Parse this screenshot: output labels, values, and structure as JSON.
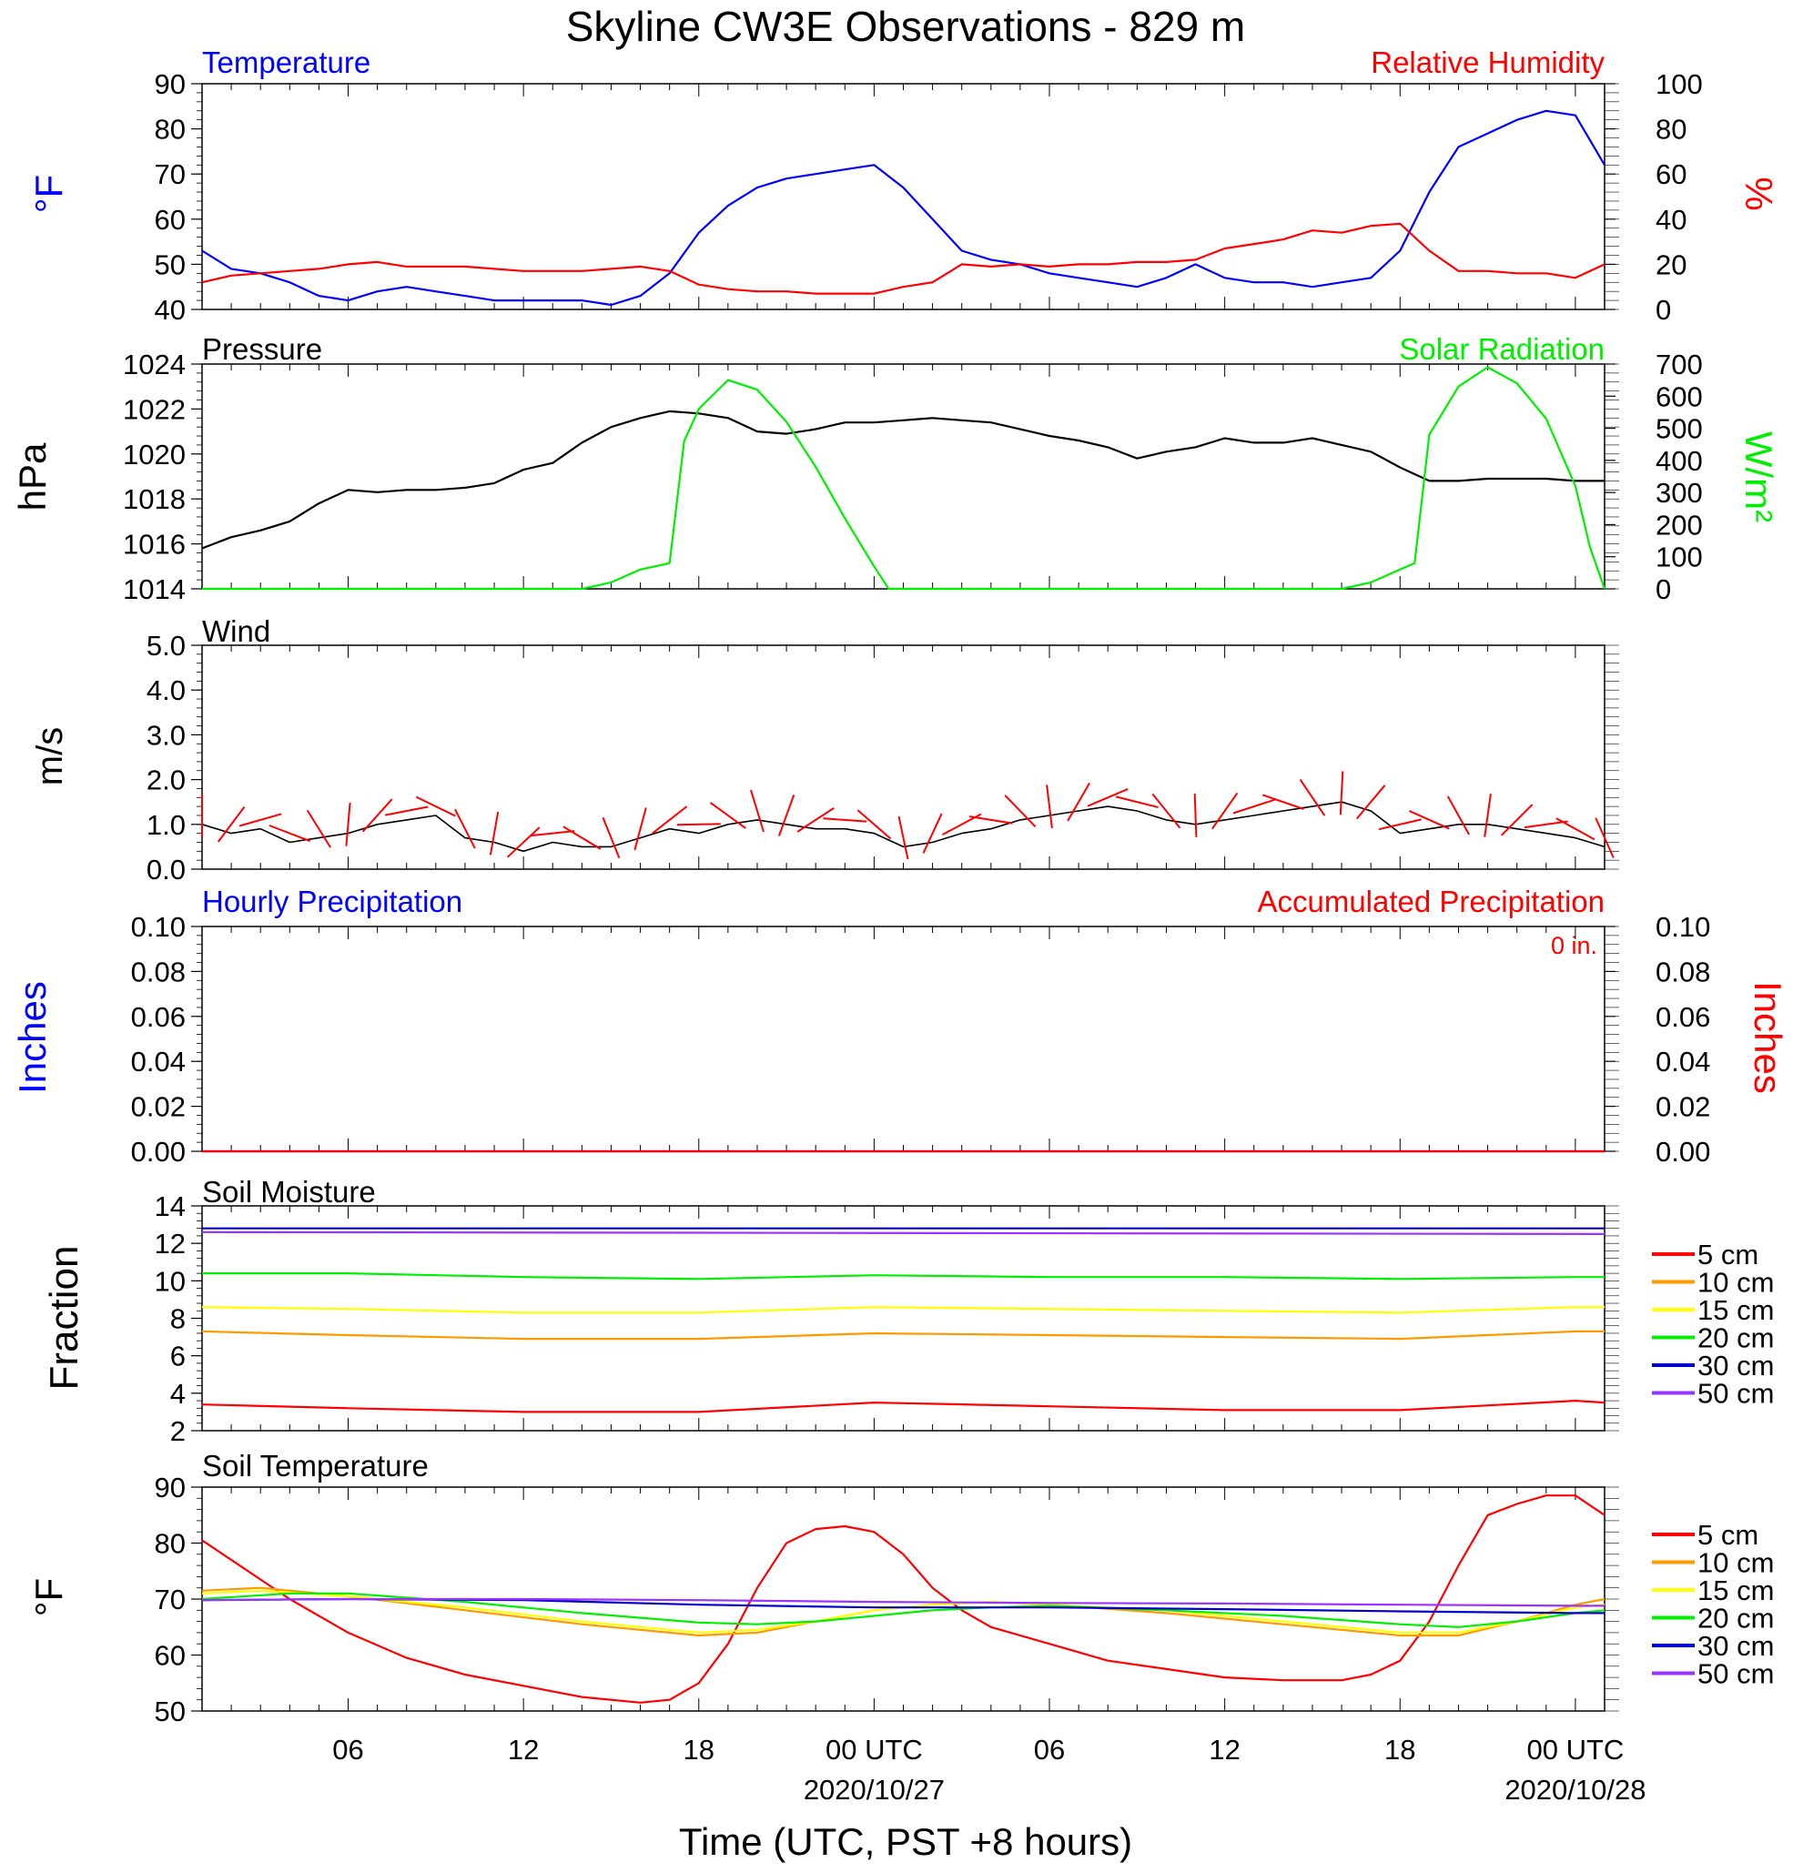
{
  "title": "Skyline CW3E Observations - 829 m",
  "xlabel": "Time (UTC, PST +8 hours)",
  "x_ticks": [
    {
      "hour": 6,
      "label": "06",
      "date": ""
    },
    {
      "hour": 12,
      "label": "12",
      "date": ""
    },
    {
      "hour": 18,
      "label": "18",
      "date": ""
    },
    {
      "hour": 24,
      "label": "00 UTC",
      "date": "2020/10/27"
    },
    {
      "hour": 30,
      "label": "06",
      "date": ""
    },
    {
      "hour": 36,
      "label": "12",
      "date": ""
    },
    {
      "hour": 42,
      "label": "18",
      "date": ""
    },
    {
      "hour": 48,
      "label": "00 UTC",
      "date": "2020/10/28"
    }
  ],
  "colors": {
    "temperature": "#0000ff",
    "humidity": "#ff0000",
    "pressure": "#000000",
    "solar": "#00ee00",
    "wind": "#000000",
    "barbs": "#ff0000",
    "soil_5cm": "#ff0000",
    "soil_10cm": "#ff9900",
    "soil_15cm": "#ffff00",
    "soil_20cm": "#00ee00",
    "soil_30cm": "#0000cc",
    "soil_50cm": "#9933ff"
  },
  "panels": {
    "temp_rh": {
      "left_title": "Temperature",
      "right_title": "Relative Humidity",
      "left_unit": "°F",
      "right_unit": "%",
      "left_ticks": [
        "40",
        "50",
        "60",
        "70",
        "80",
        "90"
      ],
      "right_ticks": [
        "0",
        "20",
        "40",
        "60",
        "80",
        "100"
      ]
    },
    "pressure_solar": {
      "left_title": "Pressure",
      "right_title": "Solar Radiation",
      "left_unit": "hPa",
      "right_unit": "W/m²",
      "left_ticks": [
        "1014",
        "1016",
        "1018",
        "1020",
        "1022",
        "1024"
      ],
      "right_ticks": [
        "0",
        "100",
        "200",
        "300",
        "400",
        "500",
        "600",
        "700"
      ]
    },
    "wind": {
      "left_title": "Wind",
      "left_unit": "m/s",
      "left_ticks": [
        "0.0",
        "1.0",
        "2.0",
        "3.0",
        "4.0",
        "5.0"
      ]
    },
    "precip": {
      "left_title": "Hourly Precipitation",
      "right_title": "Accumulated Precipitation",
      "accum_label": "0 in.",
      "left_unit": "Inches",
      "right_unit": "Inches",
      "left_ticks": [
        "0.00",
        "0.02",
        "0.04",
        "0.06",
        "0.08",
        "0.10"
      ],
      "right_ticks": [
        "0.00",
        "0.02",
        "0.04",
        "0.06",
        "0.08",
        "0.10"
      ]
    },
    "soil_moisture": {
      "left_title": "Soil Moisture",
      "left_unit": "Fraction",
      "left_ticks": [
        "2",
        "4",
        "6",
        "8",
        "10",
        "12",
        "14"
      ],
      "legend": [
        "5 cm",
        "10 cm",
        "15 cm",
        "20 cm",
        "30 cm",
        "50 cm"
      ]
    },
    "soil_temp": {
      "left_title": "Soil Temperature",
      "left_unit": "°F",
      "left_ticks": [
        "50",
        "60",
        "70",
        "80",
        "90"
      ],
      "legend": [
        "5 cm",
        "10 cm",
        "15 cm",
        "20 cm",
        "30 cm",
        "50 cm"
      ]
    }
  },
  "chart_data": [
    {
      "type": "line",
      "title": "Temperature / Relative Humidity",
      "x_unit": "hours from 2020/10/26 01 UTC",
      "xlim": [
        1,
        49
      ],
      "ylim": [
        40,
        90
      ],
      "y2lim": [
        0,
        100
      ],
      "series": [
        {
          "name": "Temperature",
          "axis": "left",
          "x": [
            1,
            2,
            3,
            4,
            5,
            6,
            7,
            8,
            9,
            10,
            11,
            12,
            13,
            14,
            15,
            16,
            17,
            18,
            19,
            20,
            21,
            22,
            23,
            24,
            25,
            26,
            27,
            28,
            29,
            30,
            31,
            32,
            33,
            34,
            35,
            36,
            37,
            38,
            39,
            40,
            41,
            42,
            43,
            44,
            45,
            46,
            47,
            48,
            49
          ],
          "values": [
            53,
            49,
            48,
            46,
            43,
            42,
            44,
            45,
            44,
            43,
            42,
            42,
            42,
            42,
            41,
            43,
            48,
            57,
            63,
            67,
            69,
            70,
            71,
            72,
            67,
            60,
            53,
            51,
            50,
            48,
            47,
            46,
            45,
            47,
            50,
            47,
            46,
            46,
            45,
            46,
            47,
            53,
            66,
            76,
            79,
            82,
            84,
            83,
            72
          ]
        },
        {
          "name": "Relative Humidity",
          "axis": "right",
          "x": [
            1,
            2,
            3,
            4,
            5,
            6,
            7,
            8,
            9,
            10,
            11,
            12,
            13,
            14,
            15,
            16,
            17,
            18,
            19,
            20,
            21,
            22,
            23,
            24,
            25,
            26,
            27,
            28,
            29,
            30,
            31,
            32,
            33,
            34,
            35,
            36,
            37,
            38,
            39,
            40,
            41,
            42,
            43,
            44,
            45,
            46,
            47,
            48,
            49
          ],
          "values": [
            12,
            15,
            16,
            17,
            18,
            20,
            21,
            19,
            19,
            19,
            18,
            17,
            17,
            17,
            18,
            19,
            17,
            11,
            9,
            8,
            8,
            7,
            7,
            7,
            10,
            12,
            20,
            19,
            20,
            19,
            20,
            20,
            21,
            21,
            22,
            27,
            29,
            31,
            35,
            34,
            37,
            38,
            26,
            17,
            17,
            16,
            16,
            14,
            20
          ]
        }
      ]
    },
    {
      "type": "line",
      "title": "Pressure / Solar Radiation",
      "x_unit": "hours from 2020/10/26 01 UTC",
      "xlim": [
        1,
        49
      ],
      "ylim": [
        1014,
        1024
      ],
      "y2lim": [
        0,
        700
      ],
      "series": [
        {
          "name": "Pressure",
          "axis": "left",
          "x": [
            1,
            2,
            3,
            4,
            5,
            6,
            7,
            8,
            9,
            10,
            11,
            12,
            13,
            14,
            15,
            16,
            17,
            18,
            19,
            20,
            21,
            22,
            23,
            24,
            25,
            26,
            27,
            28,
            29,
            30,
            31,
            32,
            33,
            34,
            35,
            36,
            37,
            38,
            39,
            40,
            41,
            42,
            43,
            44,
            45,
            46,
            47,
            48,
            49
          ],
          "values": [
            1015.8,
            1016.3,
            1016.6,
            1017.0,
            1017.8,
            1018.4,
            1018.3,
            1018.4,
            1018.4,
            1018.5,
            1018.7,
            1019.3,
            1019.6,
            1020.5,
            1021.2,
            1021.6,
            1021.9,
            1021.8,
            1021.6,
            1021.0,
            1020.9,
            1021.1,
            1021.4,
            1021.4,
            1021.5,
            1021.6,
            1021.5,
            1021.4,
            1021.1,
            1020.8,
            1020.6,
            1020.3,
            1019.8,
            1020.1,
            1020.3,
            1020.7,
            1020.5,
            1020.5,
            1020.7,
            1020.4,
            1020.1,
            1019.4,
            1018.8,
            1018.8,
            1018.9,
            1018.9,
            1018.9,
            1018.8,
            1018.8
          ]
        },
        {
          "name": "Solar Radiation",
          "axis": "right",
          "x": [
            1,
            14,
            15,
            16,
            17,
            17.5,
            18,
            19,
            20,
            21,
            22,
            23,
            24,
            24.5,
            25,
            40,
            41,
            42,
            42.5,
            43,
            44,
            45,
            46,
            47,
            48,
            48.5,
            49
          ],
          "values": [
            0,
            0,
            20,
            60,
            80,
            460,
            560,
            650,
            620,
            520,
            380,
            220,
            70,
            0,
            0,
            0,
            20,
            60,
            80,
            480,
            630,
            690,
            640,
            530,
            320,
            130,
            0
          ]
        }
      ]
    },
    {
      "type": "line",
      "title": "Wind",
      "x_unit": "hours from 2020/10/26 01 UTC",
      "xlim": [
        1,
        49
      ],
      "ylim": [
        0,
        5
      ],
      "series": [
        {
          "name": "Wind speed",
          "x": [
            1,
            2,
            3,
            4,
            5,
            6,
            7,
            8,
            9,
            10,
            11,
            12,
            13,
            14,
            15,
            16,
            17,
            18,
            19,
            20,
            21,
            22,
            23,
            24,
            25,
            26,
            27,
            28,
            29,
            30,
            31,
            32,
            33,
            34,
            35,
            36,
            37,
            38,
            39,
            40,
            41,
            42,
            43,
            44,
            45,
            46,
            47,
            48,
            49
          ],
          "values": [
            1.0,
            0.8,
            0.9,
            0.6,
            0.7,
            0.8,
            1.0,
            1.1,
            1.2,
            0.7,
            0.6,
            0.4,
            0.6,
            0.5,
            0.5,
            0.7,
            0.9,
            0.8,
            1.0,
            1.1,
            1.0,
            0.9,
            0.9,
            0.8,
            0.5,
            0.6,
            0.8,
            0.9,
            1.1,
            1.2,
            1.3,
            1.4,
            1.3,
            1.1,
            1.0,
            1.1,
            1.2,
            1.3,
            1.4,
            1.5,
            1.3,
            0.8,
            0.9,
            1.0,
            1.0,
            0.9,
            0.8,
            0.7,
            0.5
          ]
        }
      ]
    },
    {
      "type": "line",
      "title": "Hourly Precipitation / Accumulated Precipitation",
      "x_unit": "hours from 2020/10/26 01 UTC",
      "xlim": [
        1,
        49
      ],
      "ylim": [
        0,
        0.1
      ],
      "y2lim": [
        0,
        0.1
      ],
      "series": [
        {
          "name": "Hourly Precipitation",
          "axis": "left",
          "x": [
            1,
            49
          ],
          "values": [
            0,
            0
          ]
        },
        {
          "name": "Accumulated Precipitation",
          "axis": "right",
          "x": [
            1,
            49
          ],
          "values": [
            0,
            0
          ]
        }
      ]
    },
    {
      "type": "line",
      "title": "Soil Moisture",
      "x_unit": "hours from 2020/10/26 01 UTC",
      "xlim": [
        1,
        49
      ],
      "ylim": [
        2,
        14
      ],
      "series": [
        {
          "name": "5 cm",
          "x": [
            1,
            6,
            12,
            18,
            24,
            30,
            36,
            42,
            48,
            49
          ],
          "values": [
            3.4,
            3.2,
            3.0,
            3.0,
            3.5,
            3.3,
            3.1,
            3.1,
            3.6,
            3.5
          ]
        },
        {
          "name": "10 cm",
          "x": [
            1,
            6,
            12,
            18,
            24,
            30,
            36,
            42,
            48,
            49
          ],
          "values": [
            7.3,
            7.1,
            6.9,
            6.9,
            7.2,
            7.1,
            7.0,
            6.9,
            7.3,
            7.3
          ]
        },
        {
          "name": "15 cm",
          "x": [
            1,
            6,
            12,
            18,
            24,
            30,
            36,
            42,
            48,
            49
          ],
          "values": [
            8.6,
            8.5,
            8.3,
            8.3,
            8.6,
            8.5,
            8.4,
            8.3,
            8.6,
            8.6
          ]
        },
        {
          "name": "20 cm",
          "x": [
            1,
            6,
            12,
            18,
            24,
            30,
            36,
            42,
            48,
            49
          ],
          "values": [
            10.4,
            10.4,
            10.2,
            10.1,
            10.3,
            10.2,
            10.2,
            10.1,
            10.2,
            10.2
          ]
        },
        {
          "name": "30 cm",
          "x": [
            1,
            49
          ],
          "values": [
            12.8,
            12.8
          ]
        },
        {
          "name": "50 cm",
          "x": [
            1,
            49
          ],
          "values": [
            12.6,
            12.5
          ]
        }
      ]
    },
    {
      "type": "line",
      "title": "Soil Temperature",
      "x_unit": "hours from 2020/10/26 01 UTC",
      "xlim": [
        1,
        49
      ],
      "ylim": [
        50,
        90
      ],
      "series": [
        {
          "name": "5 cm",
          "x": [
            1,
            3,
            4,
            6,
            8,
            10,
            12,
            14,
            16,
            17,
            18,
            19,
            20,
            21,
            22,
            23,
            24,
            25,
            26,
            27,
            28,
            30,
            32,
            34,
            36,
            38,
            40,
            41,
            42,
            43,
            44,
            45,
            46,
            47,
            48,
            49
          ],
          "values": [
            80.5,
            73.5,
            70,
            64,
            59.5,
            56.5,
            54.5,
            52.5,
            51.5,
            52,
            55,
            62,
            72,
            80,
            82.5,
            83,
            82,
            78,
            72,
            68,
            65,
            62,
            59,
            57.5,
            56,
            55.5,
            55.5,
            56.5,
            59,
            66,
            76,
            85,
            87,
            88.5,
            88.5,
            85
          ]
        },
        {
          "name": "10 cm",
          "x": [
            1,
            3,
            6,
            10,
            14,
            18,
            20,
            22,
            24,
            26,
            28,
            30,
            34,
            38,
            42,
            44,
            46,
            48,
            49
          ],
          "values": [
            71.5,
            72,
            70.5,
            68,
            65.5,
            63.5,
            64,
            66,
            68,
            69,
            69.5,
            69,
            67.5,
            65.5,
            63.5,
            63.5,
            66,
            69,
            70
          ]
        },
        {
          "name": "15 cm",
          "x": [
            1,
            3,
            6,
            10,
            14,
            18,
            20,
            22,
            24,
            26,
            28,
            30,
            34,
            38,
            42,
            44,
            46,
            48,
            49
          ],
          "values": [
            71,
            71.5,
            70.5,
            68.5,
            66,
            64,
            64.5,
            66,
            68,
            69,
            69.5,
            69,
            68,
            66,
            64,
            64,
            66,
            68.5,
            69
          ]
        },
        {
          "name": "20 cm",
          "x": [
            1,
            4,
            6,
            10,
            14,
            18,
            20,
            22,
            24,
            26,
            28,
            30,
            34,
            38,
            42,
            44,
            46,
            48,
            49
          ],
          "values": [
            70,
            71,
            71,
            69.5,
            67.5,
            65.8,
            65.5,
            66,
            67,
            68,
            68.5,
            68.8,
            68,
            67,
            65.5,
            65,
            66,
            67.5,
            68
          ]
        },
        {
          "name": "30 cm",
          "x": [
            1,
            6,
            12,
            18,
            24,
            30,
            36,
            42,
            48,
            49
          ],
          "values": [
            69.8,
            70,
            69.8,
            69,
            68.5,
            68.5,
            68.2,
            67.8,
            67.5,
            67.5
          ]
        },
        {
          "name": "50 cm",
          "x": [
            1,
            6,
            12,
            18,
            24,
            30,
            36,
            42,
            48,
            49
          ],
          "values": [
            69.8,
            70,
            70,
            69.8,
            69.5,
            69.3,
            69.2,
            69,
            68.8,
            68.8
          ]
        }
      ]
    }
  ]
}
